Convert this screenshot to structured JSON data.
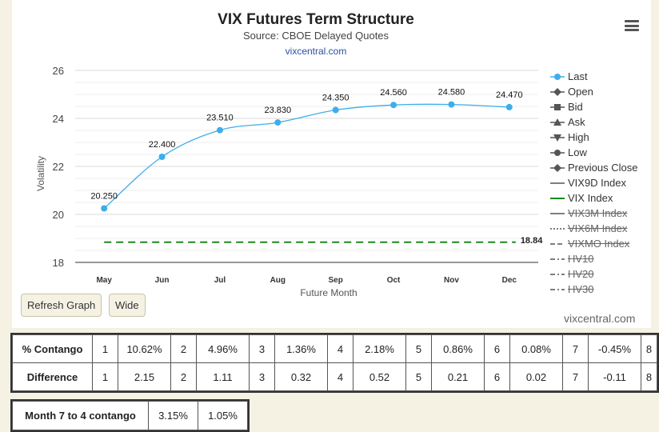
{
  "chart_data": {
    "type": "line",
    "title": "VIX Futures Term Structure",
    "subtitle": "Source: CBOE Delayed Quotes",
    "link": "vixcentral.com",
    "xlabel": "Future Month",
    "ylabel": "Volatility",
    "categories": [
      "May",
      "Jun",
      "Jul",
      "Aug",
      "Sep",
      "Oct",
      "Nov",
      "Dec"
    ],
    "ylim": [
      18,
      26
    ],
    "yticks": [
      "18",
      "20",
      "22",
      "24",
      "26"
    ],
    "grid": true,
    "series": [
      {
        "name": "Last",
        "values": [
          20.25,
          22.4,
          23.51,
          23.83,
          24.35,
          24.56,
          24.58,
          24.47
        ],
        "labels": [
          "20.250",
          "22.400",
          "23.510",
          "23.830",
          "24.350",
          "24.560",
          "24.580",
          "24.470"
        ],
        "color": "#3daeea"
      },
      {
        "name": "VIX Index",
        "values": [
          18.84,
          18.84,
          18.84,
          18.84,
          18.84,
          18.84,
          18.84,
          18.84
        ],
        "end_label": "18.84",
        "color": "#1b8a1b"
      }
    ],
    "legend_position": "right"
  },
  "legend": [
    {
      "name": "Last",
      "symbol": "circle-line",
      "color": "#3daeea",
      "active": true
    },
    {
      "name": "Open",
      "symbol": "diamond-line",
      "color": "#555555",
      "active": true
    },
    {
      "name": "Bid",
      "symbol": "square-line",
      "color": "#555555",
      "active": true
    },
    {
      "name": "Ask",
      "symbol": "triangle-line",
      "color": "#555555",
      "active": true
    },
    {
      "name": "High",
      "symbol": "triangle-down-line",
      "color": "#555555",
      "active": true
    },
    {
      "name": "Low",
      "symbol": "circle-line",
      "color": "#555555",
      "active": true
    },
    {
      "name": "Previous Close",
      "symbol": "diamond-line",
      "color": "#555555",
      "active": true
    },
    {
      "name": "VIX9D Index",
      "symbol": "solid-line",
      "color": "#555555",
      "active": true
    },
    {
      "name": "VIX Index",
      "symbol": "solid-line",
      "color": "#1b8a1b",
      "active": true
    },
    {
      "name": "VIX3M Index",
      "symbol": "solid-line",
      "color": "#555555",
      "active": false
    },
    {
      "name": "VIX6M Index",
      "symbol": "dotted-line",
      "color": "#555555",
      "active": false
    },
    {
      "name": "VIXMO Index",
      "symbol": "dashed-line",
      "color": "#555555",
      "active": false
    },
    {
      "name": "HV10",
      "symbol": "dashdot-line",
      "color": "#555555",
      "active": false
    },
    {
      "name": "HV20",
      "symbol": "dashdot-line",
      "color": "#555555",
      "active": false
    },
    {
      "name": "HV30",
      "symbol": "dashdot-line",
      "color": "#555555",
      "active": false
    }
  ],
  "buttons": {
    "refresh": "Refresh Graph",
    "wide": "Wide"
  },
  "credit": "vixcentral.com",
  "contango_table": {
    "rows": [
      {
        "label": "% Contango",
        "cells": [
          "1",
          "10.62%",
          "2",
          "4.96%",
          "3",
          "1.36%",
          "4",
          "2.18%",
          "5",
          "0.86%",
          "6",
          "0.08%",
          "7",
          "-0.45%",
          "8"
        ]
      },
      {
        "label": "Difference",
        "cells": [
          "1",
          "2.15",
          "2",
          "1.11",
          "3",
          "0.32",
          "4",
          "0.52",
          "5",
          "0.21",
          "6",
          "0.02",
          "7",
          "-0.11",
          "8"
        ]
      }
    ]
  },
  "month_table": {
    "label": "Month 7 to 4 contango",
    "values": [
      "3.15%",
      "1.05%"
    ]
  }
}
